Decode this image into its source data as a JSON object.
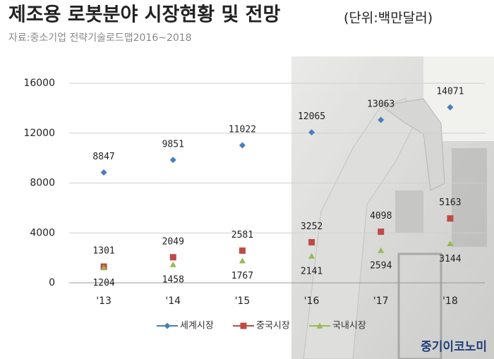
{
  "chart_data": {
    "type": "line",
    "title": "제조용 로봇분야 시장현황 및 전망",
    "unit": "(단위:백만달러)",
    "source": "자료:중소기업 전략기술로드맵2016~2018",
    "watermark": "중기이코노미",
    "categories": [
      "'13",
      "'14",
      "'15",
      "'16",
      "'17",
      "'18"
    ],
    "series": [
      {
        "name": "세계시장",
        "color": "#4a7ebb",
        "marker": "diamond",
        "label_position": "above",
        "values": [
          8847,
          9851,
          11022,
          12065,
          13063,
          14071
        ]
      },
      {
        "name": "중국시장",
        "color": "#be4b48",
        "marker": "square",
        "label_position": "above",
        "values": [
          1301,
          2049,
          2581,
          3252,
          4098,
          5163
        ]
      },
      {
        "name": "국내시장",
        "color": "#98b954",
        "marker": "triangle",
        "label_position": "below",
        "values": [
          1204,
          1458,
          1767,
          2141,
          2594,
          3144
        ]
      }
    ],
    "ylim": [
      0,
      16000
    ],
    "yticks": [
      0,
      4000,
      8000,
      12000,
      16000
    ],
    "grid": true,
    "legend": "bottom"
  }
}
